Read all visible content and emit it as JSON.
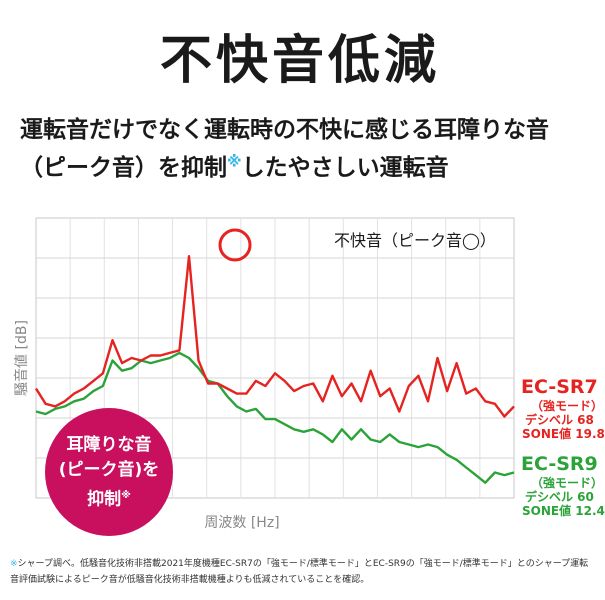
{
  "title": "不快音低減",
  "subtitle_line1": "運転音だけでなく運転時の不快に感じる耳障りな音",
  "subtitle_line2_a": "（ピーク音）を抑制",
  "subtitle_line2_b": "したやさしい運転音",
  "note_mark": "※",
  "badge": {
    "line1": "耳障りな音",
    "line2": "(ピーク音)を",
    "line3": "抑制"
  },
  "footnote": "シャープ調べ。低騒音化技術非搭載2021年度機種EC-SR7の「強モード/標準モード」とEC-SR9の「強モード/標準モード」とのシャープ運転音評価試験によるピーク音が低騒音化技術非搭載機種よりも低減されていることを確認。",
  "colors": {
    "ec_sr7": "#e52320",
    "ec_sr9": "#2ba339",
    "badge": "#c8105f",
    "note": "#36b4e8"
  },
  "legend": {
    "ec_sr7": {
      "name": "EC-SR7",
      "mode": "（強モード）",
      "db": "デシベル 68",
      "sone": "SONE値 19.8"
    },
    "ec_sr9": {
      "name": "EC-SR9",
      "mode": "（強モード）",
      "db": "デシベル 60",
      "sone": "SONE値 12.4"
    }
  },
  "chart_data": {
    "type": "line",
    "annotation": "不快音（ピーク音◯）",
    "xlabel": "周波数 [Hz]",
    "ylabel": "騒音値 [dB]",
    "grid": true,
    "x": [
      0,
      2,
      4,
      6,
      8,
      10,
      12,
      14,
      16,
      18,
      20,
      22,
      24,
      26,
      28,
      30,
      32,
      34,
      36,
      38,
      40,
      42,
      44,
      46,
      48,
      50,
      52,
      54,
      56,
      58,
      60,
      62,
      64,
      66,
      68,
      70,
      72,
      74,
      76,
      78,
      80,
      82,
      84,
      86,
      88,
      90,
      92,
      94,
      96,
      98,
      100
    ],
    "series": [
      {
        "name": "EC-SR7",
        "values": [
          33,
          27,
          26,
          28,
          31,
          33,
          36,
          39,
          52,
          43,
          45,
          44,
          46,
          46,
          47,
          48,
          85,
          44,
          35,
          35,
          33,
          31,
          31,
          36,
          34,
          39,
          36,
          32,
          34,
          35,
          28,
          38,
          30,
          35,
          28,
          40,
          30,
          33,
          24,
          34,
          38,
          28,
          45,
          32,
          43,
          31,
          33,
          28,
          27,
          22,
          26
        ]
      },
      {
        "name": "EC-SR9",
        "values": [
          24,
          23,
          25,
          26,
          28,
          29,
          32,
          34,
          44,
          40,
          41,
          44,
          43,
          44,
          45,
          47,
          45,
          41,
          36,
          35,
          30,
          26,
          24,
          25,
          21,
          21,
          19,
          17,
          16,
          17,
          15,
          12,
          17,
          13,
          17,
          13,
          12,
          15,
          12,
          11,
          10,
          11,
          10,
          7,
          5,
          2,
          -1,
          -4,
          0,
          -1,
          0
        ]
      }
    ],
    "xlim": [
      0,
      100
    ],
    "ylim": [
      -10,
      100
    ]
  }
}
